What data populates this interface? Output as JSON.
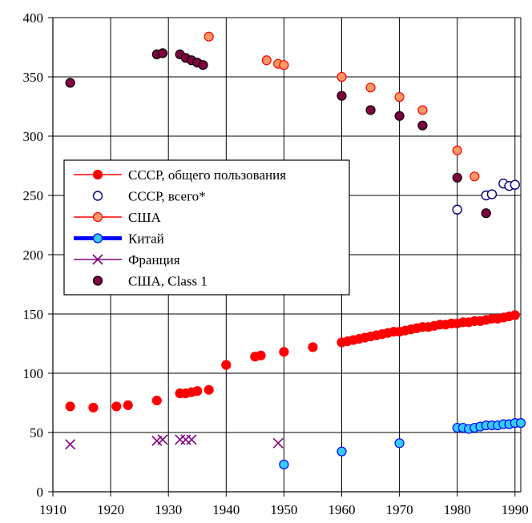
{
  "chart_data": {
    "type": "scatter",
    "title": "",
    "xlabel": "",
    "ylabel": "",
    "xlim": [
      1910,
      1991
    ],
    "ylim": [
      0,
      400
    ],
    "x_ticks": [
      1910,
      1920,
      1930,
      1940,
      1950,
      1960,
      1970,
      1980,
      1990
    ],
    "x_tick_labels": [
      "1910",
      "1920",
      "1930",
      "1940",
      "1950",
      "1960",
      "1970",
      "1980",
      "1990"
    ],
    "y_ticks": [
      0,
      50,
      100,
      150,
      200,
      250,
      300,
      350,
      400
    ],
    "y_tick_labels": [
      "0",
      "50",
      "100",
      "150",
      "200",
      "250",
      "300",
      "350",
      "400"
    ],
    "grid": true,
    "legend_position": "left-middle",
    "series": [
      {
        "name": "СССР, общего пользования",
        "color": "#ff0000",
        "marker": "filled-circle",
        "legend_line": true,
        "x": [
          1913,
          1917,
          1921,
          1923,
          1928,
          1932,
          1933,
          1934,
          1935,
          1937,
          1940,
          1945,
          1946,
          1950,
          1955,
          1960,
          1961,
          1962,
          1963,
          1964,
          1965,
          1966,
          1967,
          1968,
          1969,
          1970,
          1971,
          1972,
          1973,
          1974,
          1975,
          1976,
          1977,
          1978,
          1979,
          1980,
          1981,
          1982,
          1983,
          1984,
          1985,
          1986,
          1987,
          1988,
          1989,
          1990
        ],
        "y": [
          72,
          71,
          72,
          73,
          77,
          83,
          83,
          84,
          85,
          86,
          107,
          114,
          115,
          118,
          122,
          126,
          127,
          128,
          129,
          130,
          131,
          132,
          133,
          134,
          135,
          135,
          136,
          137,
          138,
          139,
          139,
          140,
          141,
          141,
          142,
          142,
          143,
          143,
          144,
          144,
          145,
          146,
          146,
          147,
          148,
          149
        ]
      },
      {
        "name": "СССР, всего*",
        "color": "#000080",
        "marker": "open-circle",
        "legend_line": false,
        "x": [
          1980,
          1985,
          1986,
          1988,
          1989,
          1990
        ],
        "y": [
          238,
          250,
          251,
          260,
          258,
          259
        ]
      },
      {
        "name": "США",
        "color": "#ff0000",
        "marker_fill": "#ff9966",
        "marker": "filled-circle",
        "legend_line": true,
        "x": [
          1937,
          1947,
          1949,
          1950,
          1960,
          1965,
          1970,
          1974,
          1980,
          1983
        ],
        "y": [
          384,
          364,
          361,
          360,
          350,
          341,
          333,
          322,
          288,
          266
        ]
      },
      {
        "name": "Китай",
        "color": "#0000ff",
        "marker_fill": "#33ccff",
        "marker": "filled-circle",
        "legend_line": true,
        "x": [
          1950,
          1960,
          1970,
          1980,
          1981,
          1982,
          1983,
          1984,
          1985,
          1986,
          1987,
          1988,
          1989,
          1990,
          1991
        ],
        "y": [
          23,
          34,
          41,
          54,
          54,
          53,
          54,
          55,
          56,
          56,
          56,
          57,
          57,
          58,
          58
        ]
      },
      {
        "name": "Франция",
        "color": "#800080",
        "marker": "x",
        "legend_line": true,
        "x": [
          1913,
          1928,
          1929,
          1932,
          1933,
          1934,
          1949
        ],
        "y": [
          40,
          43,
          44,
          44,
          44,
          44,
          41
        ]
      },
      {
        "name": "США, Class 1",
        "color": "#000000",
        "marker_fill": "#800040",
        "marker": "filled-circle",
        "legend_line": false,
        "x": [
          1913,
          1928,
          1929,
          1932,
          1933,
          1934,
          1935,
          1936,
          1960,
          1965,
          1970,
          1974,
          1980,
          1985
        ],
        "y": [
          345,
          369,
          370,
          369,
          366,
          364,
          362,
          360,
          334,
          322,
          317,
          309,
          265,
          235
        ]
      }
    ]
  }
}
